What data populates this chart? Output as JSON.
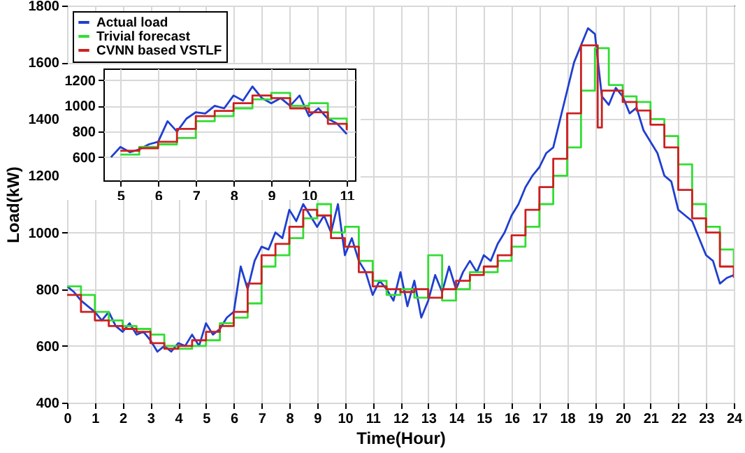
{
  "chart_data": [
    {
      "type": "line",
      "xlabel": "Time(Hour)",
      "ylabel": "Load(kW)",
      "xlim": [
        0,
        24
      ],
      "ylim": [
        400,
        1800
      ],
      "xticks": [
        0,
        1,
        2,
        3,
        4,
        5,
        6,
        7,
        8,
        9,
        10,
        11,
        12,
        13,
        14,
        15,
        16,
        17,
        18,
        19,
        20,
        21,
        22,
        23,
        24
      ],
      "yticks": [
        400,
        600,
        800,
        1000,
        1200,
        1400,
        1600,
        1800
      ],
      "grid": true,
      "legend": "top left",
      "marker": "none",
      "line_style": "solid",
      "series": [
        {
          "name": "Actual load",
          "color": "#1f3fd0",
          "type": "line",
          "x": [
            0,
            0.25,
            0.5,
            0.75,
            1,
            1.25,
            1.5,
            1.75,
            2,
            2.25,
            2.5,
            2.75,
            3,
            3.25,
            3.5,
            3.75,
            4,
            4.25,
            4.5,
            4.75,
            5,
            5.25,
            5.5,
            5.75,
            6,
            6.25,
            6.5,
            6.75,
            7,
            7.25,
            7.5,
            7.75,
            8,
            8.25,
            8.5,
            8.75,
            9,
            9.25,
            9.5,
            9.75,
            10,
            10.25,
            10.5,
            10.75,
            11,
            11.25,
            11.5,
            11.75,
            12,
            12.25,
            12.5,
            12.75,
            13,
            13.25,
            13.5,
            13.75,
            14,
            14.25,
            14.5,
            14.75,
            15,
            15.25,
            15.5,
            15.75,
            16,
            16.25,
            16.5,
            16.75,
            17,
            17.25,
            17.5,
            17.75,
            18,
            18.25,
            18.5,
            18.75,
            19,
            19.25,
            19.5,
            19.75,
            20,
            20.25,
            20.5,
            20.75,
            21,
            21.25,
            21.5,
            21.75,
            22,
            22.25,
            22.5,
            22.75,
            23,
            23.25,
            23.5,
            23.75,
            24
          ],
          "values": [
            810,
            790,
            760,
            740,
            720,
            690,
            720,
            670,
            650,
            680,
            640,
            650,
            620,
            580,
            600,
            580,
            610,
            600,
            640,
            600,
            680,
            640,
            660,
            700,
            720,
            880,
            800,
            900,
            950,
            940,
            1000,
            980,
            1080,
            1040,
            1100,
            1060,
            1020,
            1060,
            1000,
            1100,
            920,
            980,
            900,
            860,
            780,
            830,
            800,
            760,
            860,
            740,
            830,
            700,
            760,
            850,
            790,
            880,
            800,
            860,
            900,
            860,
            920,
            900,
            960,
            1000,
            1060,
            1100,
            1160,
            1200,
            1230,
            1280,
            1300,
            1400,
            1500,
            1600,
            1660,
            1720,
            1700,
            1480,
            1450,
            1510,
            1480,
            1420,
            1440,
            1360,
            1320,
            1280,
            1200,
            1180,
            1080,
            1060,
            1040,
            980,
            920,
            900,
            820,
            840,
            850
          ]
        },
        {
          "name": "Trivial forecast",
          "color": "#33dd33",
          "type": "step",
          "x": [
            0,
            0.5,
            1,
            1.5,
            2,
            2.5,
            3,
            3.5,
            4,
            4.5,
            5,
            5.5,
            6,
            6.5,
            7,
            7.5,
            8,
            8.5,
            9,
            9.5,
            10,
            10.5,
            11,
            11.5,
            12,
            12.5,
            13,
            13.5,
            14,
            14.5,
            15,
            15.5,
            16,
            16.5,
            17,
            17.5,
            18,
            18.5,
            19,
            19.5,
            20,
            20.5,
            21,
            21.5,
            22,
            22.5,
            23,
            23.5,
            24
          ],
          "values": [
            810,
            780,
            720,
            690,
            670,
            660,
            640,
            600,
            590,
            600,
            620,
            680,
            700,
            750,
            880,
            920,
            980,
            1050,
            1100,
            1000,
            1020,
            900,
            830,
            780,
            800,
            770,
            920,
            760,
            800,
            860,
            860,
            900,
            950,
            1020,
            1100,
            1200,
            1300,
            1500,
            1650,
            1520,
            1480,
            1460,
            1400,
            1340,
            1240,
            1100,
            1020,
            940,
            880
          ]
        },
        {
          "name": "CVNN based VSTLF",
          "color": "#cc2020",
          "type": "step",
          "x": [
            0,
            0.5,
            1,
            1.5,
            2,
            2.5,
            3,
            3.5,
            4,
            4.5,
            5,
            5.5,
            6,
            6.5,
            7,
            7.5,
            8,
            8.5,
            9,
            9.5,
            10,
            10.5,
            11,
            11.5,
            12,
            12.5,
            13,
            13.5,
            14,
            14.5,
            15,
            15.5,
            16,
            16.5,
            17,
            17.5,
            18,
            18.5,
            19.1,
            19.25,
            19.5,
            20,
            20.5,
            21,
            21.5,
            22,
            22.5,
            23,
            23.5,
            24
          ],
          "values": [
            780,
            720,
            690,
            670,
            660,
            650,
            610,
            590,
            600,
            620,
            650,
            670,
            720,
            820,
            920,
            960,
            1020,
            1080,
            1060,
            980,
            950,
            860,
            810,
            800,
            790,
            800,
            770,
            800,
            830,
            850,
            880,
            920,
            990,
            1080,
            1160,
            1260,
            1420,
            1660,
            1370,
            1500,
            1500,
            1460,
            1430,
            1380,
            1300,
            1150,
            1050,
            1000,
            880,
            840
          ]
        }
      ]
    },
    {
      "type": "line",
      "xlim": [
        4.55,
        11.22
      ],
      "ylim": [
        420,
        1290
      ],
      "xticks": [
        5,
        6,
        7,
        8,
        9,
        10,
        11
      ],
      "yticks": [
        600,
        800,
        1000,
        1200
      ],
      "grid": true,
      "marker": "none",
      "line_style": "solid",
      "series": [
        {
          "color": "#1f3fd0",
          "type": "line",
          "x": [
            4.75,
            5,
            5.25,
            5.5,
            5.75,
            6,
            6.25,
            6.5,
            6.75,
            7,
            7.25,
            7.5,
            7.75,
            8,
            8.25,
            8.5,
            8.75,
            9,
            9.25,
            9.5,
            9.75,
            10,
            10.25,
            10.5,
            10.75,
            11
          ],
          "values": [
            600,
            680,
            640,
            660,
            700,
            720,
            880,
            800,
            900,
            950,
            940,
            1000,
            980,
            1080,
            1040,
            1150,
            1060,
            1020,
            1060,
            1000,
            1080,
            920,
            980,
            900,
            860,
            780
          ]
        },
        {
          "color": "#33dd33",
          "type": "step",
          "x": [
            5,
            5.5,
            6,
            6.5,
            7,
            7.5,
            8,
            8.5,
            9,
            9.5,
            10,
            10.5,
            11
          ],
          "values": [
            620,
            680,
            700,
            750,
            880,
            920,
            980,
            1050,
            1100,
            1000,
            1020,
            900,
            830
          ]
        },
        {
          "color": "#cc2020",
          "type": "step",
          "x": [
            5,
            5.5,
            6,
            6.5,
            7,
            7.5,
            8,
            8.5,
            9,
            9.5,
            10,
            10.5,
            11
          ],
          "values": [
            650,
            670,
            720,
            820,
            920,
            960,
            1020,
            1080,
            1060,
            980,
            950,
            860,
            810
          ]
        }
      ]
    }
  ]
}
